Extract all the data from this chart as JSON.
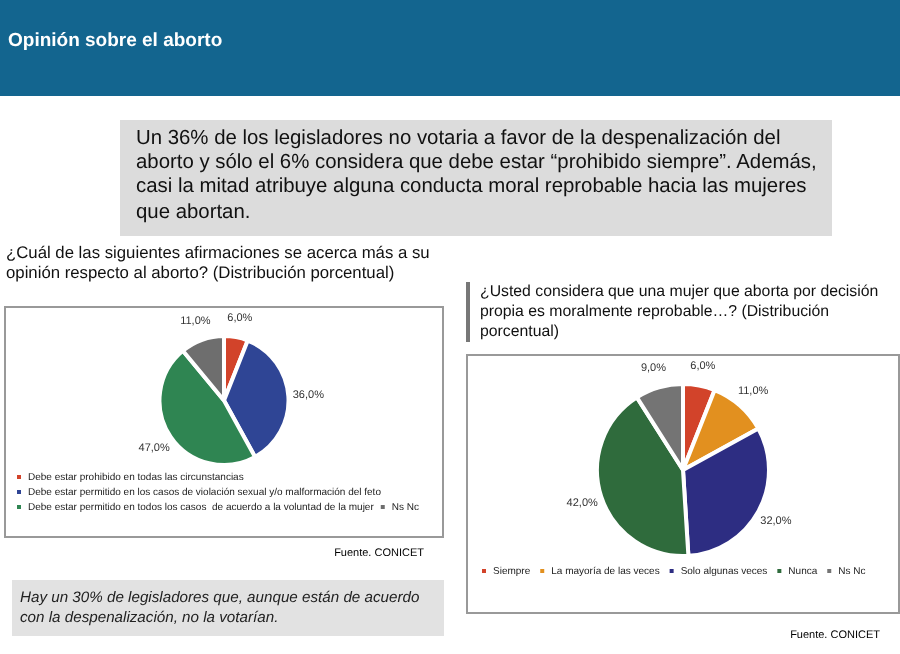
{
  "chart_data": [
    {
      "type": "pie",
      "title": "¿Cuál de las siguientes afirmaciones se acerca más a su opinión respecto al aborto? (Distribución porcentual)",
      "categories": [
        "Debe estar prohibido en todas las circunstancias",
        "Debe estar permitido en los casos de violación sexual y/o malformación del feto",
        "Debe estar permitido en todos los casos  de acuerdo a la voluntad de la mujer",
        "Ns Nc"
      ],
      "values": [
        6,
        36,
        47,
        11
      ],
      "colors": [
        "#d2432a",
        "#2f4595",
        "#2f8552",
        "#6e6e6e"
      ],
      "value_labels": [
        "6,0%",
        "36,0%",
        "47,0%",
        "11,0%"
      ],
      "legend": "bottom",
      "annotations": [
        "Opinión sobre el aborto",
        "Un 36% de los legisladores no votaria a favor de la despenalización del aborto y sólo el 6% considera que debe estar “prohibido siempre”. Además, casi la mitad atribuye alguna conducta moral reprobable hacia las mujeres que abortan.",
        "Fuente. CONICET",
        "Hay un 30% de legisladores que, aunque están de acuerdo con la despenalización, no la votarían."
      ]
    },
    {
      "type": "pie",
      "title": "¿Usted considera que una mujer que aborta por decisión propia es moralmente reprobable…? (Distribución porcentual)",
      "categories": [
        "Siempre",
        "La mayoría de las veces",
        "Solo algunas veces",
        "Nunca",
        "Ns Nc"
      ],
      "values": [
        6,
        11,
        32,
        42,
        9
      ],
      "colors": [
        "#d2432a",
        "#e2901f",
        "#2d2d82",
        "#2f6b3c",
        "#747474"
      ],
      "value_labels": [
        "6,0%",
        "11,0%",
        "32,0%",
        "42,0%",
        "9,0%"
      ],
      "legend": "bottom",
      "annotations": [
        "Fuente. CONICET"
      ]
    }
  ]
}
